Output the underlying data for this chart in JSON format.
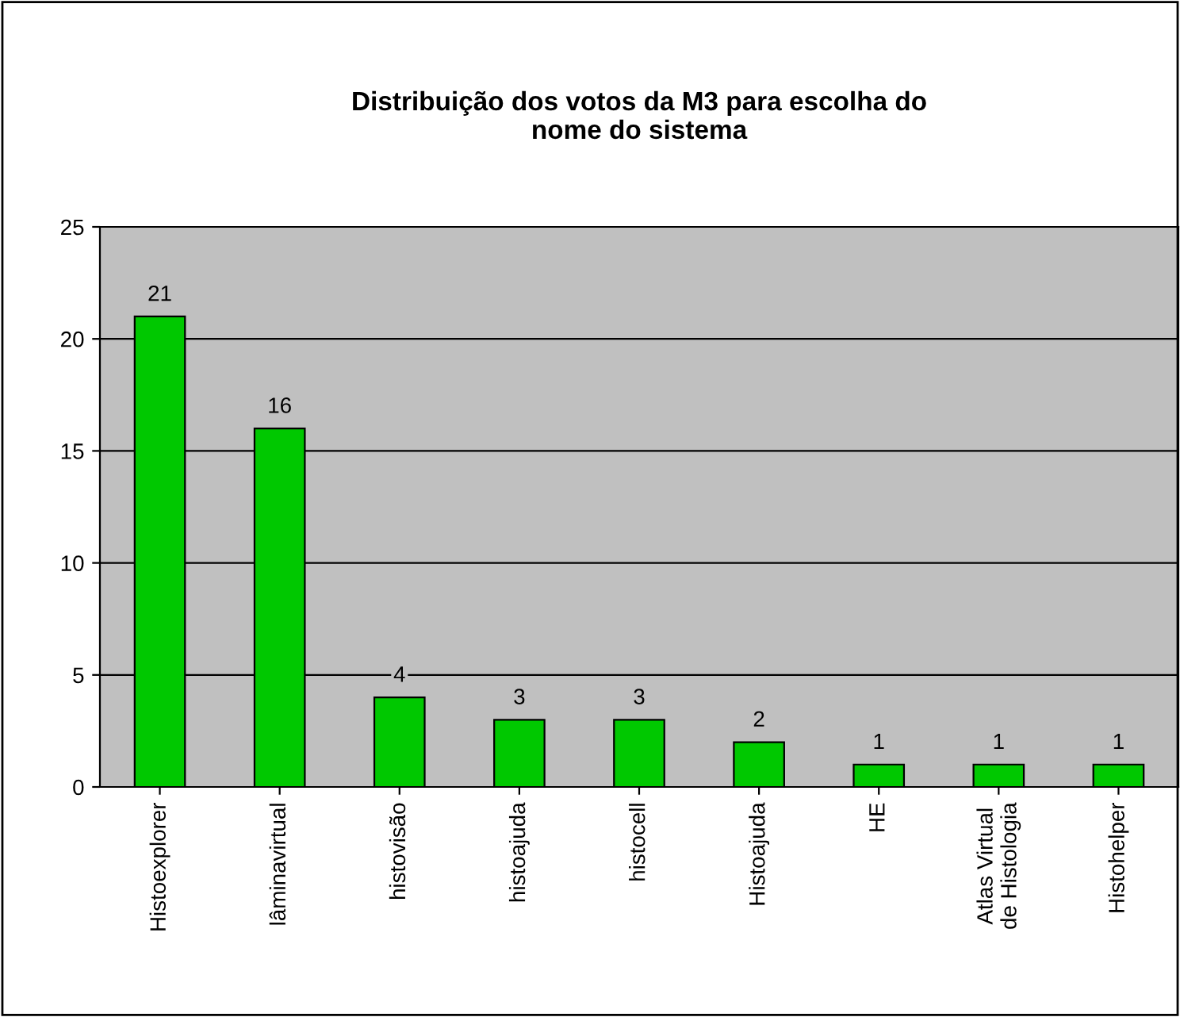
{
  "chart_data": {
    "type": "bar",
    "title": "Distribuição dos votos da M3 para escolha do\nnome do sistema",
    "categories": [
      "Histoexplorer",
      "lâminavirtual",
      "histovisão",
      "histoajuda",
      "histocell",
      "Histoajuda",
      "HE",
      "Atlas Virtual\nde Histologia",
      "Histohelper"
    ],
    "values": [
      21,
      16,
      4,
      3,
      3,
      2,
      1,
      1,
      1
    ],
    "color": "#00c800",
    "ylim": [
      0,
      25
    ],
    "yticks": [
      0,
      5,
      10,
      15,
      20,
      25
    ],
    "grid": "y",
    "data_labels": true
  }
}
